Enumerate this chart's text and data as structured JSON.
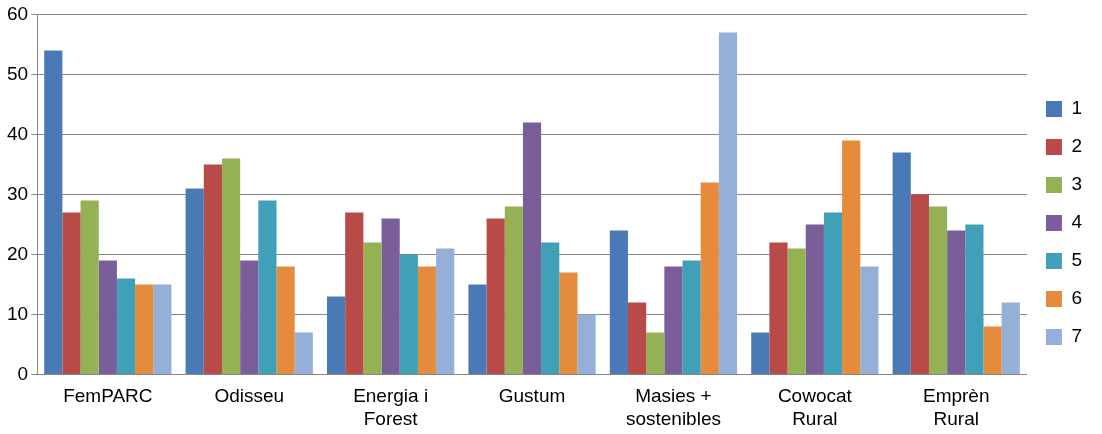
{
  "chart_data": {
    "type": "bar",
    "categories": [
      "FemPARC",
      "Odisseu",
      "Energia i Forest",
      "Gustum",
      "Masies + sostenibles",
      "Cowocat Rural",
      "Emprèn Rural"
    ],
    "series": [
      {
        "name": "1",
        "color": "#4a7ab5",
        "values": [
          54,
          31,
          13,
          15,
          24,
          7,
          37
        ]
      },
      {
        "name": "2",
        "color": "#b84a48",
        "values": [
          27,
          35,
          27,
          26,
          12,
          22,
          30
        ]
      },
      {
        "name": "3",
        "color": "#94b254",
        "values": [
          29,
          36,
          22,
          28,
          7,
          21,
          28
        ]
      },
      {
        "name": "4",
        "color": "#7a5e9a",
        "values": [
          19,
          19,
          26,
          42,
          18,
          25,
          24
        ]
      },
      {
        "name": "5",
        "color": "#40a0b8",
        "values": [
          16,
          29,
          20,
          22,
          19,
          27,
          25
        ]
      },
      {
        "name": "6",
        "color": "#e58b3c",
        "values": [
          15,
          18,
          18,
          17,
          32,
          39,
          8
        ]
      },
      {
        "name": "7",
        "color": "#95b0d8",
        "values": [
          15,
          7,
          21,
          10,
          57,
          18,
          12
        ]
      }
    ],
    "ylim": [
      0,
      60
    ],
    "yticks": [
      0,
      10,
      20,
      30,
      40,
      50,
      60
    ],
    "grid": "y",
    "legend": "right"
  }
}
